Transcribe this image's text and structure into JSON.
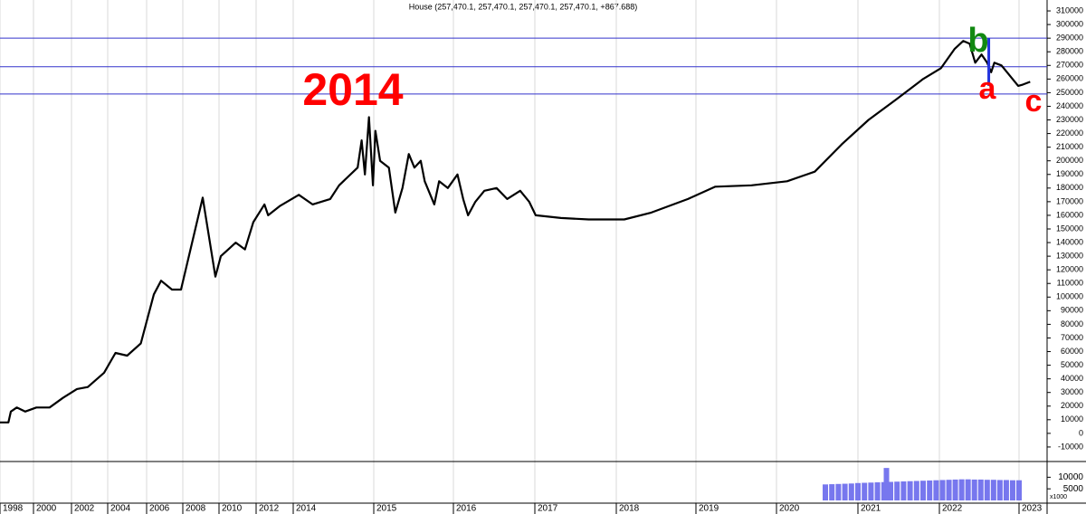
{
  "chart_data": {
    "type": "line",
    "title": "House (257,470.1, 257,470.1, 257,470.1, 257,470.1, +867.688)",
    "series": [
      {
        "name": "House",
        "color": "#000000",
        "x": [
          1998.0,
          1998.5,
          1998.65,
          1999.0,
          1999.5,
          2000.15,
          2000.85,
          2001.55,
          2002.3,
          2002.9,
          2003.8,
          2004.4,
          2005.0,
          2005.7,
          2006.4,
          2006.8,
          2007.4,
          2007.9,
          2008.55,
          2009.1,
          2009.8,
          2010.1,
          2010.9,
          2011.4,
          2011.85,
          2012.45,
          2012.65,
          2013.3,
          2014.07,
          2014.24,
          2014.46,
          2014.57,
          2014.8,
          2014.85,
          2014.89,
          2014.94,
          2014.99,
          2015.02,
          2015.08,
          2015.19,
          2015.27,
          2015.36,
          2015.44,
          2015.51,
          2015.59,
          2015.64,
          2015.76,
          2015.82,
          2015.93,
          2016.05,
          2016.12,
          2016.18,
          2016.27,
          2016.38,
          2016.53,
          2016.66,
          2016.82,
          2016.93,
          2017.01,
          2017.32,
          2017.66,
          2018.1,
          2018.44,
          2018.9,
          2019.24,
          2019.69,
          2020.13,
          2020.47,
          2020.8,
          2021.13,
          2021.47,
          2021.8,
          2022.02,
          2022.19,
          2022.3,
          2022.38,
          2022.45,
          2022.53,
          2022.6,
          2022.65,
          2022.69,
          2022.78,
          2022.99,
          2023.05,
          2023.14
        ],
        "values": [
          8000,
          8000,
          16000,
          19000,
          16000,
          19000,
          19000,
          26000,
          32500,
          34000,
          44500,
          59000,
          57000,
          66000,
          102000,
          112000,
          105500,
          105500,
          142000,
          173000,
          115000,
          130000,
          140000,
          135000,
          155000,
          168000,
          160000,
          167000,
          175000,
          168000,
          172000,
          182000,
          195000,
          215000,
          190000,
          232000,
          182000,
          222000,
          200000,
          195000,
          162000,
          180000,
          205000,
          195000,
          200000,
          185000,
          168000,
          185000,
          180000,
          190000,
          172000,
          160000,
          170000,
          178000,
          180000,
          172000,
          178000,
          170000,
          160000,
          158000,
          157000,
          157000,
          162000,
          172000,
          181000,
          182000,
          185000,
          192000,
          212000,
          230000,
          245000,
          260000,
          268000,
          282000,
          288000,
          286000,
          272000,
          278000,
          272000,
          265000,
          272000,
          270000,
          255000,
          256000,
          258000
        ]
      }
    ],
    "hlines": {
      "color": "#3333cc",
      "values": [
        290000,
        269000,
        249000
      ]
    },
    "vline": {
      "color": "#2233dd",
      "x": 2022.62,
      "values": [
        290000,
        255000
      ]
    },
    "annotations": [
      {
        "text": "2014",
        "color": "#ff0000"
      },
      {
        "text": "b",
        "color": "#118811"
      },
      {
        "text": "a",
        "color": "#ff0000"
      },
      {
        "text": "c",
        "color": "#ff0000"
      }
    ],
    "xticks": [
      1998,
      2000,
      2002,
      2004,
      2006,
      2008,
      2010,
      2012,
      2014,
      2015,
      2016,
      2017,
      2018,
      2019,
      2020,
      2021,
      2022,
      2023
    ],
    "ylim": [
      -20000,
      318000
    ],
    "yticks": [
      -10000,
      0,
      10000,
      20000,
      30000,
      40000,
      50000,
      60000,
      70000,
      80000,
      90000,
      100000,
      110000,
      120000,
      130000,
      140000,
      150000,
      160000,
      170000,
      180000,
      190000,
      200000,
      210000,
      220000,
      230000,
      240000,
      250000,
      260000,
      270000,
      280000,
      290000,
      300000,
      310000
    ],
    "grid": true,
    "volume": {
      "color": "#7777ee",
      "unit_label": "x1000",
      "ylim": [
        0,
        16000
      ],
      "yticks": [
        5000,
        10000
      ],
      "x": [
        2020.6,
        2020.68,
        2020.76,
        2020.84,
        2020.92,
        2021.0,
        2021.08,
        2021.16,
        2021.24,
        2021.32,
        2021.35,
        2021.4,
        2021.48,
        2021.56,
        2021.64,
        2021.72,
        2021.8,
        2021.88,
        2021.96,
        2022.04,
        2022.12,
        2022.2,
        2022.28,
        2022.36,
        2022.44,
        2022.52,
        2022.6,
        2022.68,
        2022.76,
        2022.84,
        2022.92,
        2023.0
      ],
      "values": [
        6900,
        7000,
        7100,
        7200,
        7300,
        7500,
        7600,
        7700,
        7800,
        7900,
        14000,
        8000,
        8100,
        8200,
        8300,
        8400,
        8500,
        8600,
        8700,
        8800,
        8900,
        9000,
        9100,
        9100,
        9000,
        9000,
        8900,
        8900,
        8800,
        8800,
        8700,
        8700
      ]
    }
  }
}
